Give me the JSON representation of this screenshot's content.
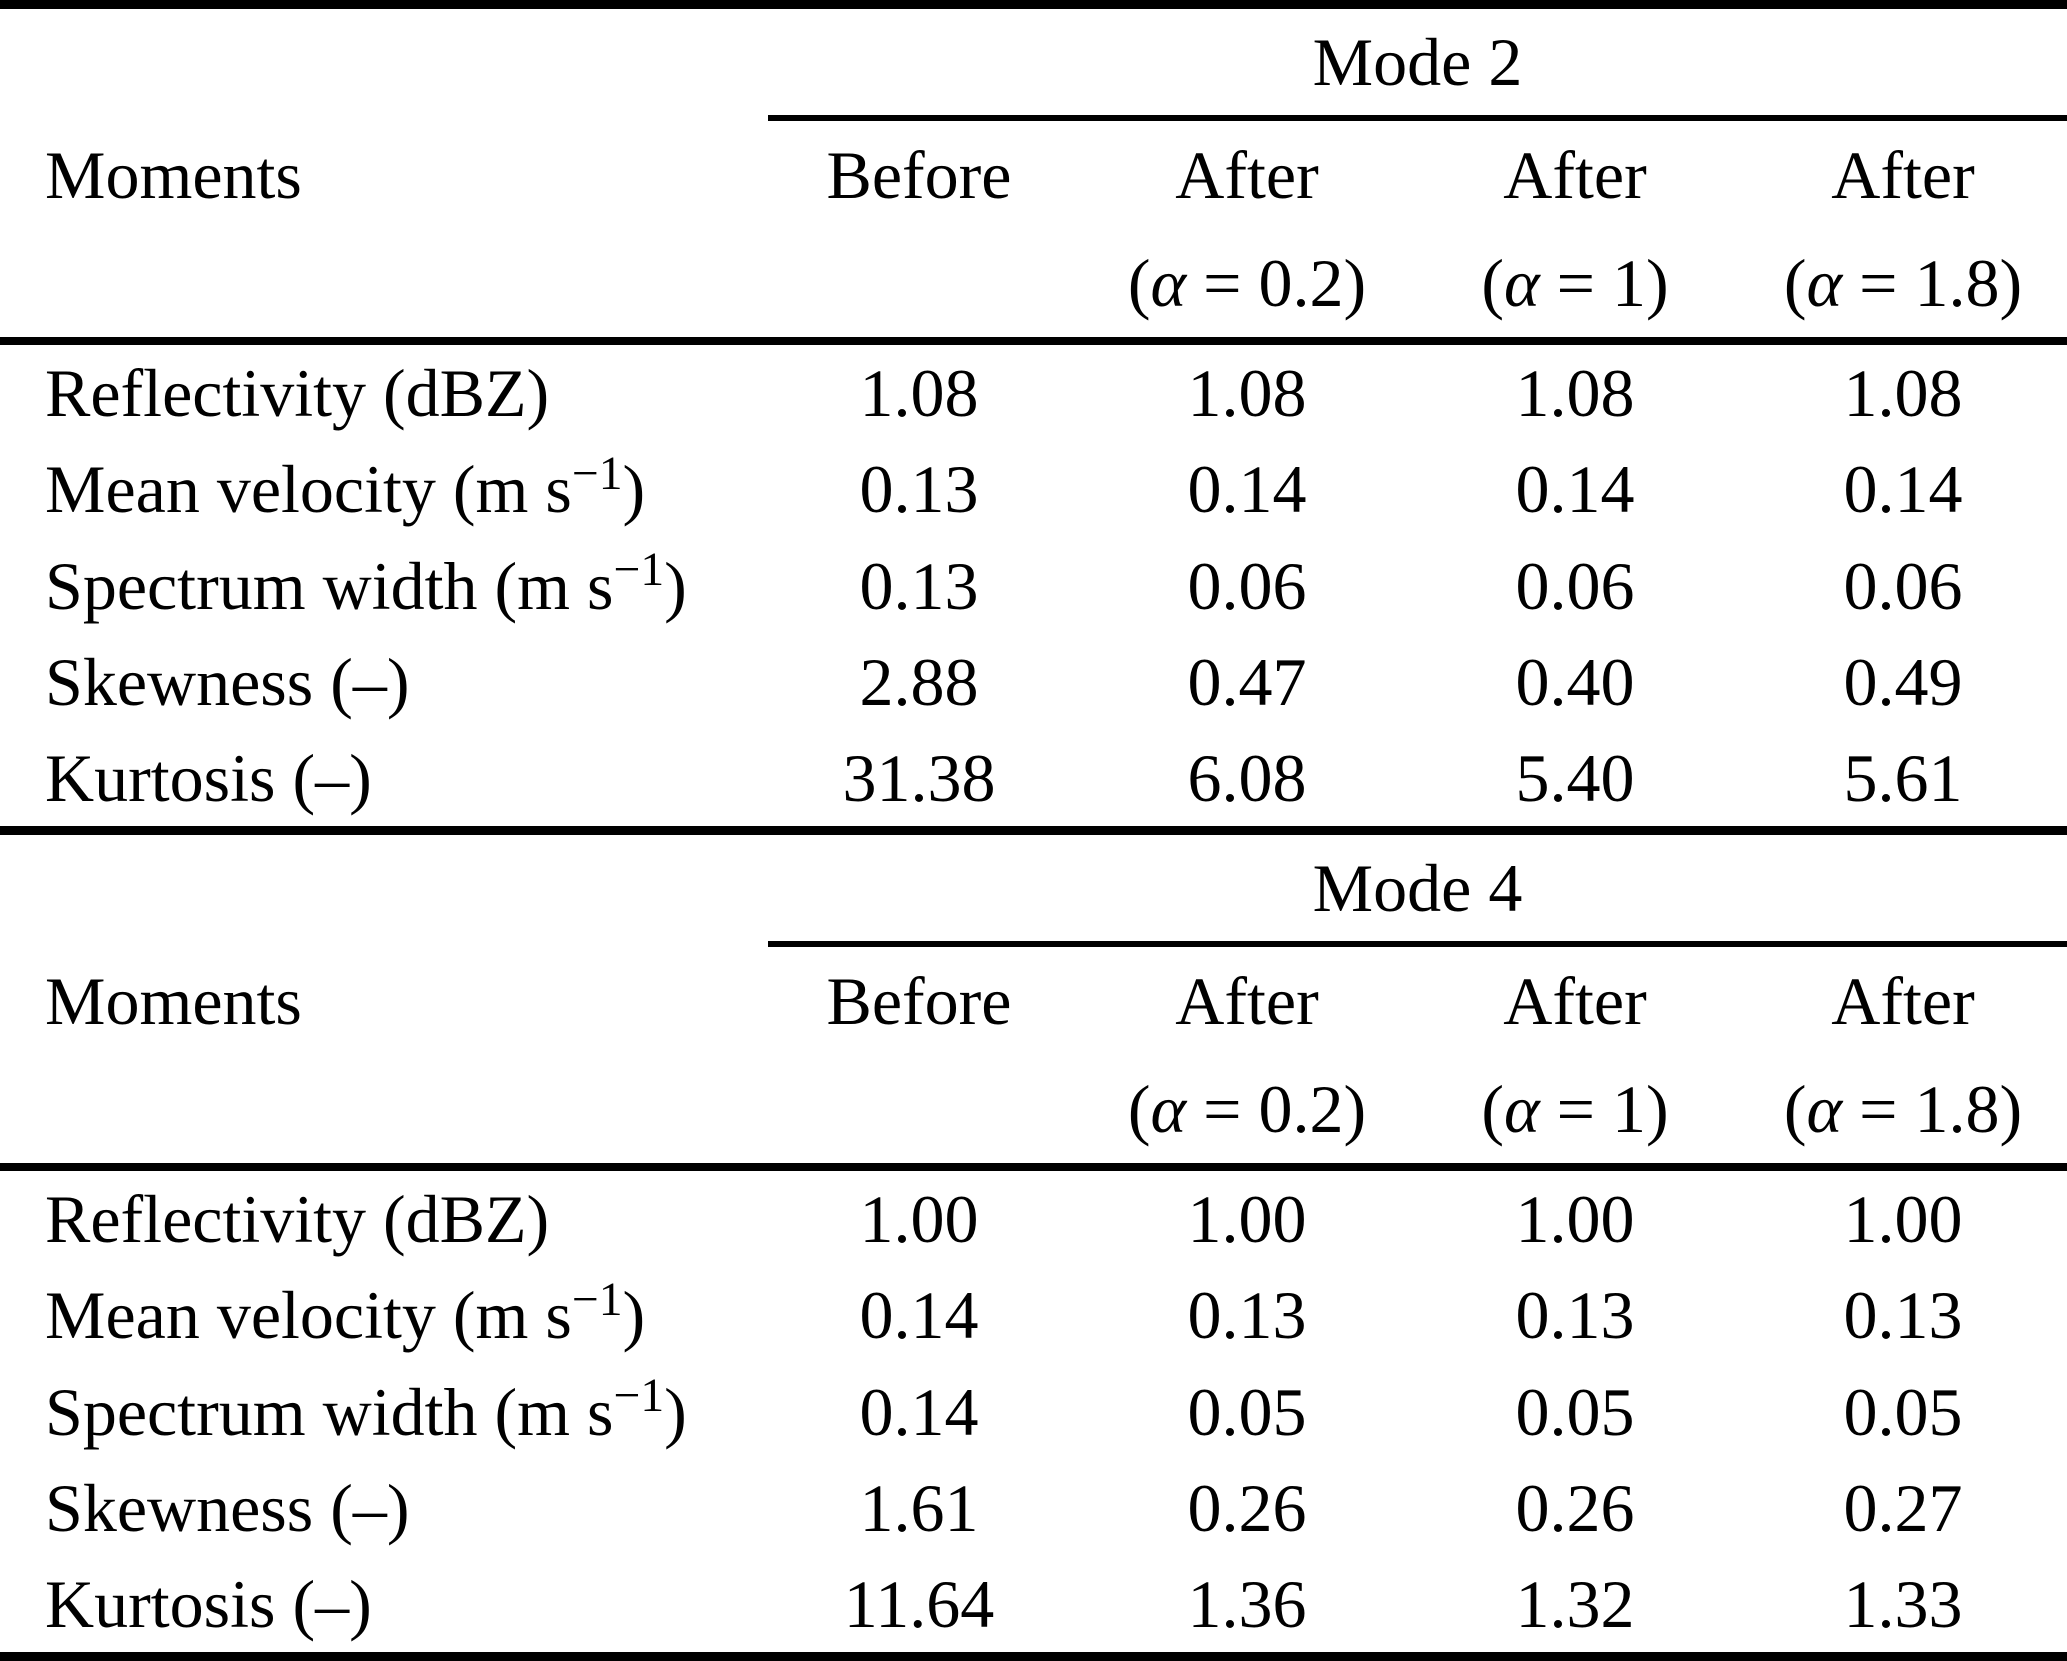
{
  "page": {
    "background_color": "#ffffff",
    "text_color": "#000000"
  },
  "tables": [
    {
      "group_header": "Mode 2",
      "col1_header": "Moments",
      "columns": [
        {
          "top": "Before",
          "sub": ""
        },
        {
          "top": "After",
          "sub": "(α = 0.2)"
        },
        {
          "top": "After",
          "sub": "(α = 1)"
        },
        {
          "top": "After",
          "sub": "(α = 1.8)"
        }
      ],
      "rows": [
        {
          "label_pre": "Reflectivity (dBZ)",
          "label_sup": "",
          "label_post": "",
          "values": [
            "1.08",
            "1.08",
            "1.08",
            "1.08"
          ]
        },
        {
          "label_pre": "Mean velocity (m s",
          "label_sup": "−1",
          "label_post": ")",
          "values": [
            "0.13",
            "0.14",
            "0.14",
            "0.14"
          ]
        },
        {
          "label_pre": "Spectrum width (m s",
          "label_sup": "−1",
          "label_post": ")",
          "values": [
            "0.13",
            "0.06",
            "0.06",
            "0.06"
          ]
        },
        {
          "label_pre": "Skewness (–)",
          "label_sup": "",
          "label_post": "",
          "values": [
            "2.88",
            "0.47",
            "0.40",
            "0.49"
          ]
        },
        {
          "label_pre": "Kurtosis (–)",
          "label_sup": "",
          "label_post": "",
          "values": [
            "31.38",
            "6.08",
            "5.40",
            "5.61"
          ]
        }
      ]
    },
    {
      "group_header": "Mode 4",
      "col1_header": "Moments",
      "columns": [
        {
          "top": "Before",
          "sub": ""
        },
        {
          "top": "After",
          "sub": "(α = 0.2)"
        },
        {
          "top": "After",
          "sub": "(α = 1)"
        },
        {
          "top": "After",
          "sub": "(α = 1.8)"
        }
      ],
      "rows": [
        {
          "label_pre": "Reflectivity (dBZ)",
          "label_sup": "",
          "label_post": "",
          "values": [
            "1.00",
            "1.00",
            "1.00",
            "1.00"
          ]
        },
        {
          "label_pre": "Mean velocity (m s",
          "label_sup": "−1",
          "label_post": ")",
          "values": [
            "0.14",
            "0.13",
            "0.13",
            "0.13"
          ]
        },
        {
          "label_pre": "Spectrum width (m s",
          "label_sup": "−1",
          "label_post": ")",
          "values": [
            "0.14",
            "0.05",
            "0.05",
            "0.05"
          ]
        },
        {
          "label_pre": "Skewness (–)",
          "label_sup": "",
          "label_post": "",
          "values": [
            "1.61",
            "0.26",
            "0.26",
            "0.27"
          ]
        },
        {
          "label_pre": "Kurtosis (–)",
          "label_sup": "",
          "label_post": "",
          "values": [
            "11.64",
            "1.36",
            "1.32",
            "1.33"
          ]
        }
      ]
    }
  ]
}
